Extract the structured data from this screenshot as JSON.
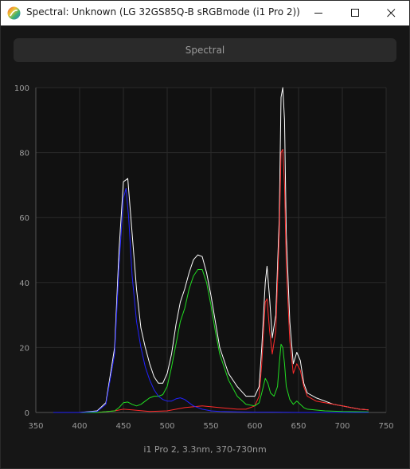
{
  "window": {
    "title": "Spectral: Unknown (LG 32GS85Q-B sRGBmode (i1 Pro 2))",
    "icon": "spectral-app-icon",
    "minimize_icon": "minimize-icon",
    "maximize_icon": "maximize-icon",
    "close_icon": "close-icon"
  },
  "toolbar": {
    "spectral_label": "Spectral"
  },
  "caption": "i1 Pro 2, 3.3nm, 370-730nm",
  "chart_data": {
    "type": "line",
    "xlim": [
      350,
      750
    ],
    "ylim": [
      0,
      100
    ],
    "x_ticks": [
      350,
      400,
      450,
      500,
      550,
      600,
      650,
      700,
      750
    ],
    "y_ticks": [
      0,
      20,
      40,
      60,
      80,
      100
    ],
    "grid": true,
    "series": [
      {
        "color": "#ffffff",
        "points": [
          [
            370,
            0
          ],
          [
            380,
            0
          ],
          [
            400,
            0
          ],
          [
            420,
            0.5
          ],
          [
            430,
            3
          ],
          [
            440,
            20
          ],
          [
            445,
            50
          ],
          [
            450,
            71
          ],
          [
            455,
            72
          ],
          [
            460,
            55
          ],
          [
            465,
            38
          ],
          [
            470,
            26
          ],
          [
            475,
            20
          ],
          [
            480,
            15
          ],
          [
            485,
            11
          ],
          [
            490,
            9
          ],
          [
            495,
            9
          ],
          [
            500,
            12
          ],
          [
            505,
            18
          ],
          [
            510,
            27
          ],
          [
            515,
            34
          ],
          [
            520,
            38
          ],
          [
            525,
            43
          ],
          [
            530,
            47
          ],
          [
            535,
            48.5
          ],
          [
            540,
            48
          ],
          [
            545,
            43
          ],
          [
            550,
            36
          ],
          [
            555,
            28
          ],
          [
            560,
            20
          ],
          [
            570,
            12
          ],
          [
            580,
            8
          ],
          [
            590,
            5
          ],
          [
            600,
            5
          ],
          [
            605,
            8
          ],
          [
            608,
            20
          ],
          [
            612,
            40
          ],
          [
            614,
            45
          ],
          [
            617,
            35
          ],
          [
            620,
            23
          ],
          [
            624,
            30
          ],
          [
            628,
            60
          ],
          [
            630,
            97
          ],
          [
            632,
            100
          ],
          [
            634,
            90
          ],
          [
            636,
            55
          ],
          [
            640,
            28
          ],
          [
            644,
            15
          ],
          [
            648,
            18.5
          ],
          [
            652,
            16
          ],
          [
            656,
            9
          ],
          [
            660,
            6
          ],
          [
            670,
            4.5
          ],
          [
            680,
            3.5
          ],
          [
            690,
            2.5
          ],
          [
            700,
            2
          ],
          [
            710,
            1.5
          ],
          [
            720,
            1
          ],
          [
            730,
            0.8
          ]
        ]
      },
      {
        "color": "#ff2a2a",
        "points": [
          [
            370,
            0
          ],
          [
            400,
            0
          ],
          [
            420,
            0
          ],
          [
            440,
            0.5
          ],
          [
            450,
            1
          ],
          [
            460,
            0.8
          ],
          [
            480,
            0.3
          ],
          [
            500,
            0.5
          ],
          [
            520,
            1.5
          ],
          [
            540,
            2
          ],
          [
            560,
            1.5
          ],
          [
            580,
            1
          ],
          [
            590,
            1
          ],
          [
            600,
            2
          ],
          [
            605,
            5
          ],
          [
            608,
            15
          ],
          [
            612,
            34
          ],
          [
            614,
            35
          ],
          [
            617,
            25
          ],
          [
            620,
            18
          ],
          [
            624,
            25
          ],
          [
            628,
            55
          ],
          [
            630,
            80
          ],
          [
            632,
            81
          ],
          [
            634,
            70
          ],
          [
            636,
            45
          ],
          [
            640,
            22
          ],
          [
            644,
            12
          ],
          [
            648,
            15
          ],
          [
            652,
            13
          ],
          [
            656,
            8
          ],
          [
            660,
            5
          ],
          [
            670,
            3.5
          ],
          [
            680,
            3
          ],
          [
            690,
            2.5
          ],
          [
            700,
            2
          ],
          [
            710,
            1.5
          ],
          [
            720,
            1
          ],
          [
            730,
            0.8
          ]
        ]
      },
      {
        "color": "#22dd22",
        "points": [
          [
            370,
            0
          ],
          [
            400,
            0
          ],
          [
            420,
            0
          ],
          [
            440,
            0.5
          ],
          [
            445,
            1.5
          ],
          [
            450,
            3
          ],
          [
            455,
            3.2
          ],
          [
            460,
            2.5
          ],
          [
            465,
            2
          ],
          [
            470,
            2.5
          ],
          [
            475,
            3.5
          ],
          [
            480,
            4.5
          ],
          [
            485,
            5
          ],
          [
            490,
            5
          ],
          [
            495,
            5.5
          ],
          [
            500,
            8
          ],
          [
            505,
            14
          ],
          [
            510,
            21
          ],
          [
            515,
            28
          ],
          [
            520,
            32
          ],
          [
            525,
            38
          ],
          [
            530,
            42
          ],
          [
            535,
            44
          ],
          [
            540,
            44
          ],
          [
            545,
            40
          ],
          [
            550,
            33
          ],
          [
            555,
            25
          ],
          [
            560,
            18
          ],
          [
            570,
            10
          ],
          [
            580,
            5
          ],
          [
            590,
            2.5
          ],
          [
            600,
            2
          ],
          [
            605,
            3
          ],
          [
            608,
            6
          ],
          [
            612,
            10.5
          ],
          [
            615,
            9
          ],
          [
            618,
            6
          ],
          [
            622,
            5
          ],
          [
            626,
            8
          ],
          [
            628,
            15
          ],
          [
            630,
            21
          ],
          [
            632,
            20
          ],
          [
            634,
            15
          ],
          [
            636,
            8
          ],
          [
            640,
            4
          ],
          [
            644,
            2.5
          ],
          [
            648,
            3.5
          ],
          [
            652,
            2.5
          ],
          [
            656,
            1.5
          ],
          [
            660,
            1
          ],
          [
            680,
            0.5
          ],
          [
            700,
            0.3
          ],
          [
            730,
            0.2
          ]
        ]
      },
      {
        "color": "#2222ff",
        "points": [
          [
            370,
            0
          ],
          [
            400,
            0
          ],
          [
            420,
            0.3
          ],
          [
            430,
            2.5
          ],
          [
            440,
            18
          ],
          [
            445,
            45
          ],
          [
            450,
            66
          ],
          [
            453,
            69
          ],
          [
            456,
            60
          ],
          [
            460,
            42
          ],
          [
            465,
            28
          ],
          [
            470,
            20
          ],
          [
            475,
            14
          ],
          [
            480,
            10
          ],
          [
            485,
            7
          ],
          [
            490,
            5
          ],
          [
            495,
            4
          ],
          [
            500,
            3.5
          ],
          [
            505,
            3.5
          ],
          [
            510,
            4.2
          ],
          [
            515,
            4.5
          ],
          [
            520,
            4
          ],
          [
            525,
            3
          ],
          [
            530,
            2
          ],
          [
            540,
            1
          ],
          [
            550,
            0.5
          ],
          [
            560,
            0.3
          ],
          [
            580,
            0.2
          ],
          [
            600,
            0.1
          ],
          [
            620,
            0.1
          ],
          [
            650,
            0
          ],
          [
            700,
            0
          ],
          [
            730,
            0
          ]
        ]
      }
    ]
  }
}
